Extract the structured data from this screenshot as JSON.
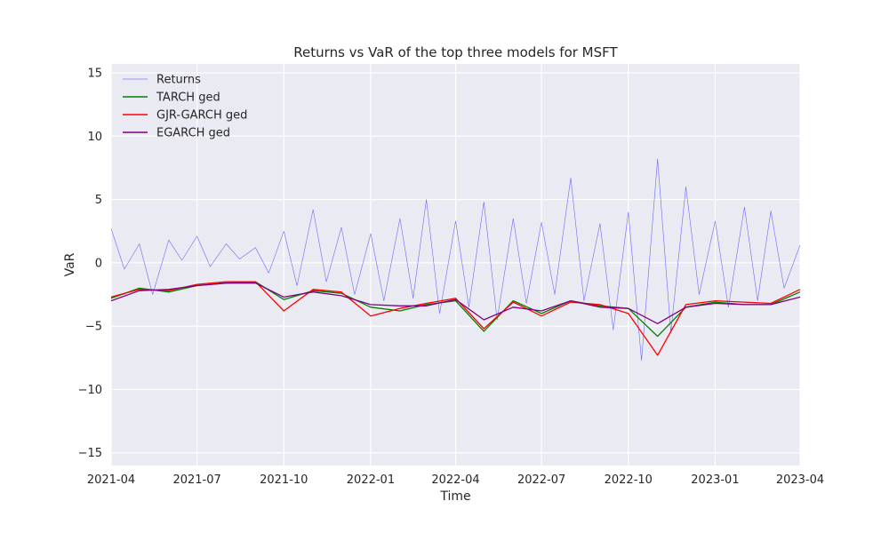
{
  "chart_data": {
    "type": "line",
    "title": "Returns vs VaR of the top three models for MSFT",
    "xlabel": "Time",
    "ylabel": "VaR",
    "xlim": [
      "2021-04-01",
      "2023-04-01"
    ],
    "ylim": [
      -16,
      15.7
    ],
    "grid": true,
    "legend_position": "top-left",
    "x_ticks": [
      "2021-04",
      "2021-07",
      "2021-10",
      "2022-01",
      "2022-04",
      "2022-07",
      "2022-10",
      "2023-01",
      "2023-04"
    ],
    "y_ticks": [
      15,
      10,
      5,
      0,
      -5,
      -10,
      -15
    ],
    "y_tick_labels": [
      "15",
      "10",
      "5",
      "0",
      "−5",
      "−10",
      "−15"
    ],
    "colors": {
      "background": "#eaeaf2",
      "grid": "#ffffff",
      "returns": "#0000ff",
      "tarch": "#008000",
      "gjr": "#ff0000",
      "egarch": "#800080"
    },
    "series": [
      {
        "name": "Returns",
        "color": "#0000ff",
        "x": [
          "2021-04-01",
          "2021-04-15",
          "2021-05-01",
          "2021-05-15",
          "2021-06-01",
          "2021-06-15",
          "2021-07-01",
          "2021-07-15",
          "2021-08-01",
          "2021-08-15",
          "2021-09-01",
          "2021-09-15",
          "2021-10-01",
          "2021-10-15",
          "2021-11-01",
          "2021-11-15",
          "2021-12-01",
          "2021-12-15",
          "2022-01-01",
          "2022-01-15",
          "2022-02-01",
          "2022-02-15",
          "2022-03-01",
          "2022-03-15",
          "2022-04-01",
          "2022-04-15",
          "2022-05-01",
          "2022-05-15",
          "2022-06-01",
          "2022-06-15",
          "2022-07-01",
          "2022-07-15",
          "2022-08-01",
          "2022-08-15",
          "2022-09-01",
          "2022-09-15",
          "2022-10-01",
          "2022-10-15",
          "2022-11-01",
          "2022-11-15",
          "2022-12-01",
          "2022-12-15",
          "2023-01-01",
          "2023-01-15",
          "2023-02-01",
          "2023-02-15",
          "2023-03-01",
          "2023-03-15",
          "2023-04-01"
        ],
        "values": [
          2.7,
          -0.5,
          1.5,
          -2.5,
          1.8,
          0.2,
          2.1,
          -0.3,
          1.5,
          0.3,
          1.2,
          -0.8,
          2.5,
          -1.8,
          4.2,
          -1.5,
          2.8,
          -2.5,
          2.3,
          -3.0,
          3.5,
          -2.8,
          5.0,
          -4.0,
          3.3,
          -3.5,
          4.8,
          -4.5,
          3.5,
          -3.2,
          3.2,
          -2.5,
          6.7,
          -3.0,
          3.1,
          -5.3,
          4.0,
          -7.7,
          8.2,
          -5.5,
          6.0,
          -2.5,
          3.3,
          -3.5,
          4.4,
          -3.0,
          4.1,
          -2.0,
          1.4
        ]
      },
      {
        "name": "TARCH ged",
        "color": "#008000",
        "x": [
          "2021-04-01",
          "2021-05-01",
          "2021-06-01",
          "2021-07-01",
          "2021-08-01",
          "2021-09-01",
          "2021-10-01",
          "2021-11-01",
          "2021-12-01",
          "2022-01-01",
          "2022-02-01",
          "2022-03-01",
          "2022-04-01",
          "2022-05-01",
          "2022-06-01",
          "2022-07-01",
          "2022-08-01",
          "2022-09-01",
          "2022-10-01",
          "2022-11-01",
          "2022-12-01",
          "2023-01-01",
          "2023-02-01",
          "2023-03-01",
          "2023-04-01"
        ],
        "values": [
          -2.8,
          -2.0,
          -2.3,
          -1.8,
          -1.6,
          -1.5,
          -2.9,
          -2.2,
          -2.4,
          -3.5,
          -3.8,
          -3.3,
          -3.0,
          -5.4,
          -3.0,
          -4.0,
          -3.0,
          -3.4,
          -3.6,
          -5.8,
          -3.5,
          -3.1,
          -3.3,
          -3.3,
          -2.3
        ]
      },
      {
        "name": "GJR-GARCH ged",
        "color": "#ff0000",
        "x": [
          "2021-04-01",
          "2021-05-01",
          "2021-06-01",
          "2021-07-01",
          "2021-08-01",
          "2021-09-01",
          "2021-10-01",
          "2021-11-01",
          "2021-12-01",
          "2022-01-01",
          "2022-02-01",
          "2022-03-01",
          "2022-04-01",
          "2022-05-01",
          "2022-06-01",
          "2022-07-01",
          "2022-08-01",
          "2022-09-01",
          "2022-10-01",
          "2022-11-01",
          "2022-12-01",
          "2023-01-01",
          "2023-02-01",
          "2023-03-01",
          "2023-04-01"
        ],
        "values": [
          -2.7,
          -2.1,
          -2.2,
          -1.7,
          -1.5,
          -1.5,
          -3.8,
          -2.1,
          -2.3,
          -4.2,
          -3.6,
          -3.2,
          -2.8,
          -5.2,
          -3.1,
          -4.2,
          -3.1,
          -3.3,
          -4.0,
          -7.3,
          -3.3,
          -3.0,
          -3.1,
          -3.2,
          -2.1
        ]
      },
      {
        "name": "EGARCH ged",
        "color": "#800080",
        "x": [
          "2021-04-01",
          "2021-05-01",
          "2021-06-01",
          "2021-07-01",
          "2021-08-01",
          "2021-09-01",
          "2021-10-01",
          "2021-11-01",
          "2021-12-01",
          "2022-01-01",
          "2022-02-01",
          "2022-03-01",
          "2022-04-01",
          "2022-05-01",
          "2022-06-01",
          "2022-07-01",
          "2022-08-01",
          "2022-09-01",
          "2022-10-01",
          "2022-11-01",
          "2022-12-01",
          "2023-01-01",
          "2023-02-01",
          "2023-03-01",
          "2023-04-01"
        ],
        "values": [
          -3.0,
          -2.2,
          -2.1,
          -1.8,
          -1.6,
          -1.6,
          -2.7,
          -2.3,
          -2.6,
          -3.3,
          -3.4,
          -3.4,
          -2.9,
          -4.5,
          -3.5,
          -3.8,
          -3.0,
          -3.5,
          -3.6,
          -4.8,
          -3.5,
          -3.2,
          -3.3,
          -3.3,
          -2.7
        ]
      }
    ]
  }
}
